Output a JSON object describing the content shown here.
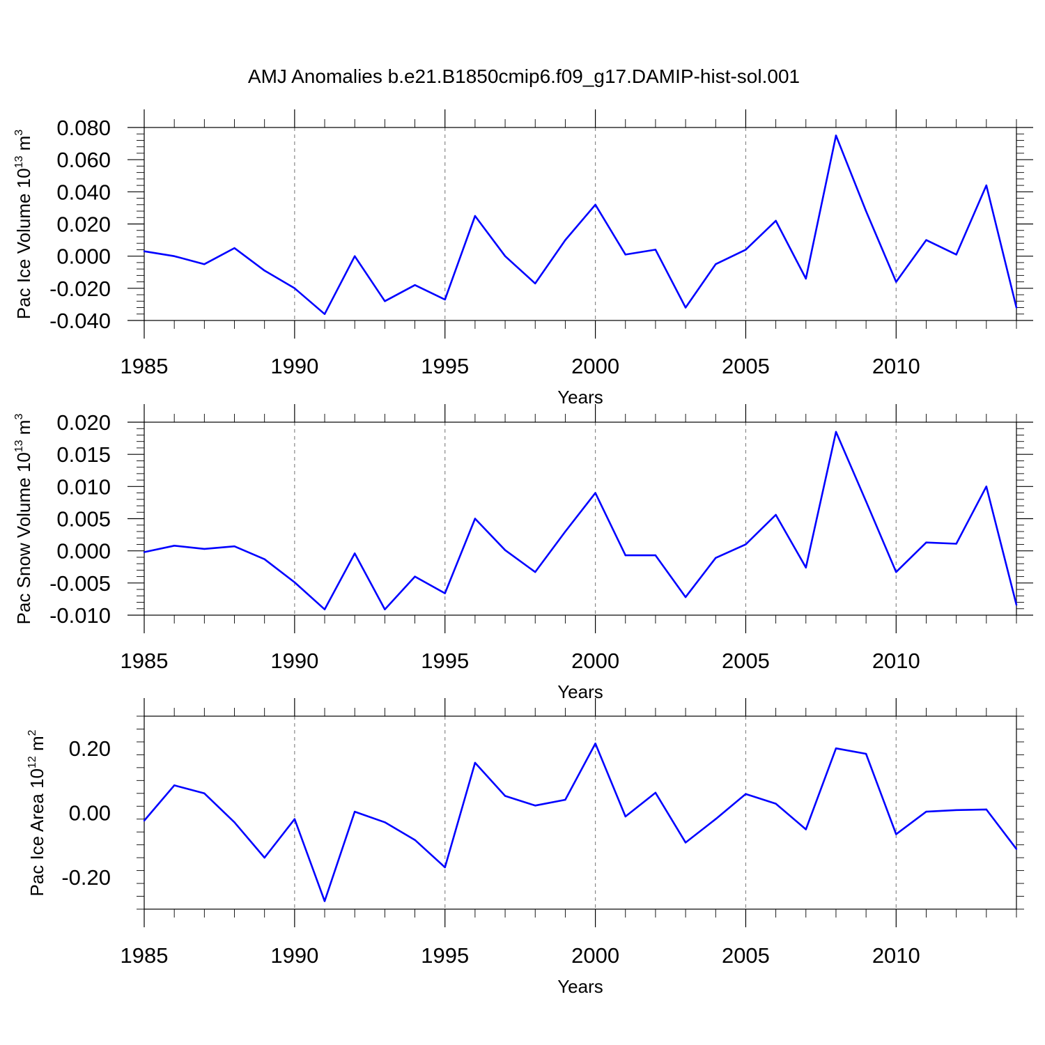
{
  "title": "AMJ Anomalies b.e21.B1850cmip6.f09_g17.DAMIP-hist-sol.001",
  "line_color": "#0000ff",
  "chart_data": [
    {
      "type": "line",
      "ylabel": "Pac Ice Volume 10",
      "ylabel_sup": "13",
      "ylabel_unit": " m",
      "ylabel_unit_sup": "3",
      "xlabel": "Years",
      "xlim": [
        1985,
        2014
      ],
      "ylim": [
        -0.04,
        0.08
      ],
      "x_ticks": [
        "1985",
        "1990",
        "1995",
        "2000",
        "2005",
        "2010"
      ],
      "y_ticks": [
        "-0.040",
        "-0.020",
        "0.000",
        "0.020",
        "0.040",
        "0.060",
        "0.080"
      ],
      "x": [
        1985,
        1986,
        1987,
        1988,
        1989,
        1990,
        1991,
        1992,
        1993,
        1994,
        1995,
        1996,
        1997,
        1998,
        1999,
        2000,
        2001,
        2002,
        2003,
        2004,
        2005,
        2006,
        2007,
        2008,
        2009,
        2010,
        2011,
        2012,
        2013,
        2014
      ],
      "values": [
        0.003,
        0.0,
        -0.005,
        0.005,
        -0.009,
        -0.02,
        -0.036,
        0.0,
        -0.028,
        -0.018,
        -0.027,
        0.025,
        0.0,
        -0.017,
        0.01,
        0.032,
        0.001,
        0.004,
        -0.032,
        -0.005,
        0.004,
        0.022,
        -0.014,
        0.075,
        0.028,
        -0.016,
        0.01,
        0.001,
        0.044,
        -0.032
      ]
    },
    {
      "type": "line",
      "ylabel": "Pac Snow Volume 10",
      "ylabel_sup": "13",
      "ylabel_unit": " m",
      "ylabel_unit_sup": "3",
      "xlabel": "Years",
      "xlim": [
        1985,
        2014
      ],
      "ylim": [
        -0.01,
        0.02
      ],
      "x_ticks": [
        "1985",
        "1990",
        "1995",
        "2000",
        "2005",
        "2010"
      ],
      "y_ticks": [
        "-0.010",
        "-0.005",
        "0.000",
        "0.005",
        "0.010",
        "0.015",
        "0.020"
      ],
      "x": [
        1985,
        1986,
        1987,
        1988,
        1989,
        1990,
        1991,
        1992,
        1993,
        1994,
        1995,
        1996,
        1997,
        1998,
        1999,
        2000,
        2001,
        2002,
        2003,
        2004,
        2005,
        2006,
        2007,
        2008,
        2009,
        2010,
        2011,
        2012,
        2013,
        2014
      ],
      "values": [
        -0.0002,
        0.0008,
        0.0003,
        0.0007,
        -0.0013,
        -0.0049,
        -0.0091,
        -0.0004,
        -0.0091,
        -0.004,
        -0.0066,
        0.005,
        0.0001,
        -0.0033,
        0.003,
        0.009,
        -0.0007,
        -0.0007,
        -0.0072,
        -0.0011,
        0.001,
        0.0056,
        -0.0026,
        0.0185,
        0.0077,
        -0.0033,
        0.0013,
        0.0011,
        0.01,
        -0.0084
      ]
    },
    {
      "type": "line",
      "ylabel": "Pac Ice Area 10",
      "ylabel_sup": "12",
      "ylabel_unit": " m",
      "ylabel_unit_sup": "2",
      "xlabel": "Years",
      "xlim": [
        1985,
        2014
      ],
      "ylim": [
        -0.3,
        0.3
      ],
      "x_ticks": [
        "1985",
        "1990",
        "1995",
        "2000",
        "2005",
        "2010"
      ],
      "y_ticks": [
        "-0.20",
        "0.00",
        "0.20"
      ],
      "x": [
        1985,
        1986,
        1987,
        1988,
        1989,
        1990,
        1991,
        1992,
        1993,
        1994,
        1995,
        1996,
        1997,
        1998,
        1999,
        2000,
        2001,
        2002,
        2003,
        2004,
        2005,
        2006,
        2007,
        2008,
        2009,
        2010,
        2011,
        2012,
        2013,
        2014
      ],
      "values": [
        -0.025,
        0.085,
        0.06,
        -0.03,
        -0.14,
        -0.02,
        -0.275,
        0.003,
        -0.03,
        -0.085,
        -0.17,
        0.155,
        0.052,
        0.022,
        0.04,
        0.215,
        -0.012,
        0.062,
        -0.093,
        -0.02,
        0.058,
        0.028,
        -0.052,
        0.2,
        0.183,
        -0.067,
        0.003,
        0.008,
        0.01,
        -0.113
      ]
    }
  ]
}
